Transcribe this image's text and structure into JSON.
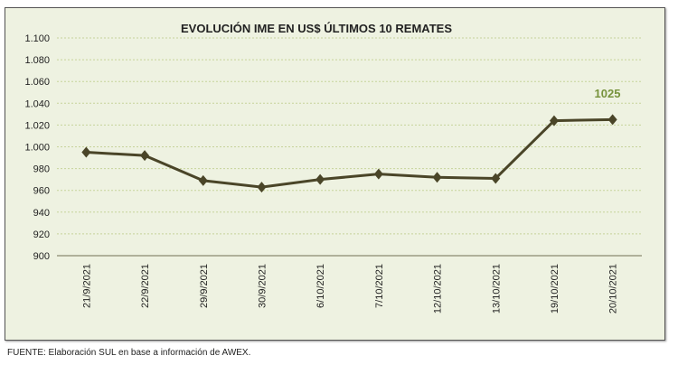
{
  "chart_data": {
    "type": "line",
    "title": "EVOLUCIÓN IME EN US$ ÚLTIMOS 10 REMATES",
    "categories": [
      "21/9/2021",
      "22/9/2021",
      "29/9/2021",
      "30/9/2021",
      "6/10/2021",
      "7/10/2021",
      "12/10/2021",
      "13/10/2021",
      "19/10/2021",
      "20/10/2021"
    ],
    "values": [
      995,
      992,
      969,
      963,
      970,
      975,
      972,
      971,
      1024,
      1025
    ],
    "ylim": [
      900,
      1100
    ],
    "yticks": [
      "900",
      "920",
      "940",
      "960",
      "980",
      "1.000",
      "1.020",
      "1.040",
      "1.060",
      "1.080",
      "1.100"
    ],
    "annotation": "1025",
    "grid": true,
    "colors": {
      "line": "#4a4528",
      "background": "#eef2e1",
      "annotation": "#77933c",
      "grid": "#c6d39a"
    }
  },
  "footer": "FUENTE: Elaboración SUL en base a información de AWEX."
}
